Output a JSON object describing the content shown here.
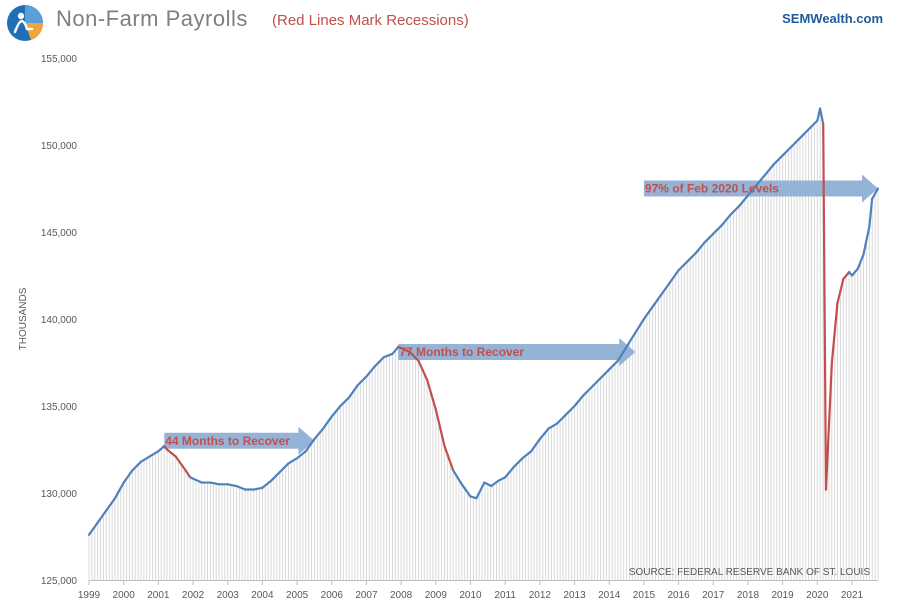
{
  "header": {
    "title": "Non-Farm  Payrolls",
    "subtitle": "(Red Lines Mark Recessions)",
    "brand": "SEMWealth.com"
  },
  "colors": {
    "line": "#4f81bd",
    "recession": "#c0504d",
    "arrow": "#95b3d7",
    "bars": "#d9d9d9",
    "axis_text": "#595959",
    "title": "#7f7f7f",
    "brand": "#1f5c99"
  },
  "icons": {
    "logo": "semwealth-logo-icon"
  },
  "chart_data": {
    "type": "line",
    "title": "Non-Farm  Payrolls",
    "subtitle": "(Red Lines Mark Recessions)",
    "ylabel": "THOUSANDS",
    "xlabel": "",
    "ylim": [
      125000,
      155000
    ],
    "xlim": [
      1999.0,
      2021.75
    ],
    "yticks": [
      125000,
      130000,
      135000,
      140000,
      145000,
      150000,
      155000
    ],
    "ytick_labels": [
      "125,000",
      "130,000",
      "135,000",
      "140,000",
      "145,000",
      "150,000",
      "155,000"
    ],
    "xtick_labels": [
      "1999",
      "2000",
      "2001",
      "2002",
      "2003",
      "2004",
      "2005",
      "2006",
      "2007",
      "2008",
      "2009",
      "2010",
      "2011",
      "2012",
      "2013",
      "2014",
      "2015",
      "2016",
      "2017",
      "2018",
      "2019",
      "2020",
      "2021"
    ],
    "bars": "monthly grey columns under the line",
    "grid": false,
    "source": "SOURCE: FEDERAL RESERVE BANK OF ST. LOUIS",
    "series": [
      {
        "role": "payrolls",
        "points": [
          [
            1999.0,
            127600
          ],
          [
            1999.25,
            128300
          ],
          [
            1999.5,
            129000
          ],
          [
            1999.75,
            129700
          ],
          [
            2000.0,
            130600
          ],
          [
            2000.25,
            131300
          ],
          [
            2000.5,
            131800
          ],
          [
            2000.75,
            132100
          ],
          [
            2001.0,
            132400
          ],
          [
            2001.17,
            132700
          ],
          [
            2001.25,
            132500
          ],
          [
            2001.5,
            132100
          ],
          [
            2001.75,
            131400
          ],
          [
            2001.92,
            130900
          ],
          [
            2002.25,
            130600
          ],
          [
            2002.5,
            130600
          ],
          [
            2002.75,
            130500
          ],
          [
            2003.0,
            130500
          ],
          [
            2003.25,
            130400
          ],
          [
            2003.5,
            130200
          ],
          [
            2003.75,
            130200
          ],
          [
            2004.0,
            130300
          ],
          [
            2004.25,
            130700
          ],
          [
            2004.5,
            131200
          ],
          [
            2004.75,
            131700
          ],
          [
            2005.0,
            132000
          ],
          [
            2005.25,
            132400
          ],
          [
            2005.5,
            133100
          ],
          [
            2005.75,
            133700
          ],
          [
            2006.0,
            134400
          ],
          [
            2006.25,
            135000
          ],
          [
            2006.5,
            135500
          ],
          [
            2006.75,
            136200
          ],
          [
            2007.0,
            136700
          ],
          [
            2007.25,
            137300
          ],
          [
            2007.5,
            137800
          ],
          [
            2007.75,
            138000
          ],
          [
            2007.92,
            138400
          ],
          [
            2008.25,
            138100
          ],
          [
            2008.5,
            137600
          ],
          [
            2008.75,
            136500
          ],
          [
            2009.0,
            134800
          ],
          [
            2009.25,
            132700
          ],
          [
            2009.5,
            131300
          ],
          [
            2009.75,
            130500
          ],
          [
            2010.0,
            129800
          ],
          [
            2010.17,
            129700
          ],
          [
            2010.4,
            130600
          ],
          [
            2010.6,
            130400
          ],
          [
            2010.8,
            130700
          ],
          [
            2011.0,
            130900
          ],
          [
            2011.25,
            131500
          ],
          [
            2011.5,
            132000
          ],
          [
            2011.75,
            132400
          ],
          [
            2012.0,
            133100
          ],
          [
            2012.25,
            133700
          ],
          [
            2012.5,
            134000
          ],
          [
            2012.75,
            134500
          ],
          [
            2013.0,
            135000
          ],
          [
            2013.25,
            135600
          ],
          [
            2013.5,
            136100
          ],
          [
            2013.75,
            136600
          ],
          [
            2014.0,
            137100
          ],
          [
            2014.25,
            137600
          ],
          [
            2014.5,
            138400
          ],
          [
            2014.75,
            139200
          ],
          [
            2015.0,
            140000
          ],
          [
            2015.25,
            140700
          ],
          [
            2015.5,
            141400
          ],
          [
            2015.75,
            142100
          ],
          [
            2016.0,
            142800
          ],
          [
            2016.25,
            143300
          ],
          [
            2016.5,
            143800
          ],
          [
            2016.75,
            144400
          ],
          [
            2017.0,
            144900
          ],
          [
            2017.25,
            145400
          ],
          [
            2017.5,
            146000
          ],
          [
            2017.75,
            146500
          ],
          [
            2018.0,
            147100
          ],
          [
            2018.25,
            147700
          ],
          [
            2018.5,
            148300
          ],
          [
            2018.75,
            148900
          ],
          [
            2019.0,
            149400
          ],
          [
            2019.25,
            149900
          ],
          [
            2019.5,
            150400
          ],
          [
            2019.75,
            150900
          ],
          [
            2020.0,
            151400
          ],
          [
            2020.08,
            152100
          ],
          [
            2020.17,
            151200
          ],
          [
            2020.25,
            130200
          ],
          [
            2020.42,
            137500
          ],
          [
            2020.58,
            140900
          ],
          [
            2020.75,
            142300
          ],
          [
            2020.92,
            142700
          ],
          [
            2021.0,
            142500
          ],
          [
            2021.17,
            142900
          ],
          [
            2021.33,
            143700
          ],
          [
            2021.5,
            145300
          ],
          [
            2021.58,
            146900
          ],
          [
            2021.75,
            147500
          ]
        ]
      }
    ],
    "recessions": [
      [
        2001.17,
        2001.92
      ],
      [
        2007.92,
        2009.5
      ],
      [
        2020.17,
        2020.92
      ]
    ],
    "annotations": [
      {
        "text": "44 Months to Recover",
        "x_start": 2001.17,
        "x_end": 2005.5,
        "y": 133000
      },
      {
        "text": "77 Months to Recover",
        "x_start": 2007.92,
        "x_end": 2014.75,
        "y": 138100
      },
      {
        "text": "97% of Feb 2020 Levels",
        "x_start": 2015.0,
        "x_end": 2021.75,
        "y": 147500
      }
    ]
  }
}
